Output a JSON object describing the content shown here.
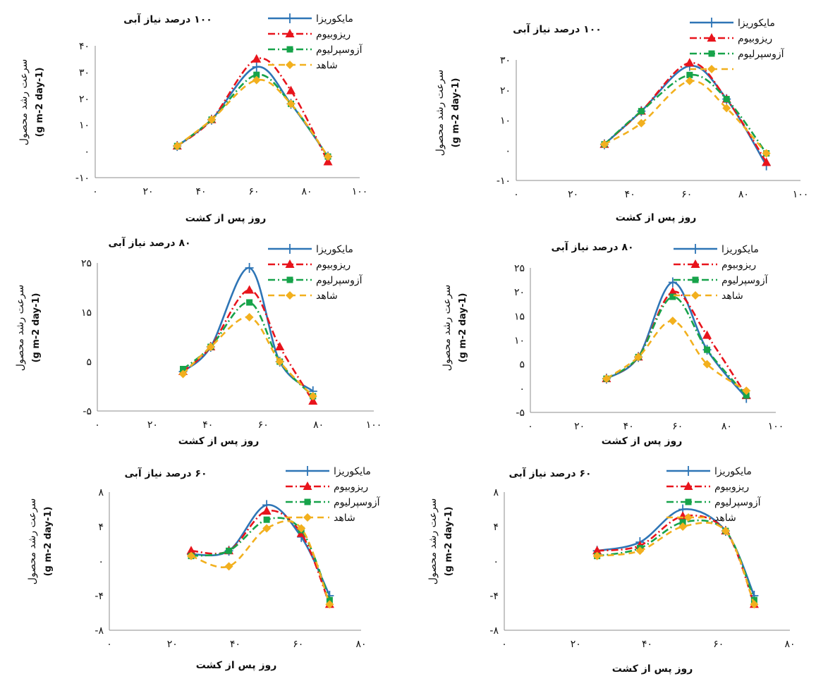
{
  "colors": {
    "mycorrhiza": "#2e75b6",
    "rhizobium": "#e8141c",
    "azospirillum": "#17a34a",
    "control": "#f2b01e"
  },
  "chart_data": [
    {
      "type": "line",
      "title": "۱۰۰ درصد نیاز آبی",
      "xlabel": "روز پس از کشت",
      "ylabel": "سرعت رشد محصول",
      "ylabel_unit": "(g m-2 day-1)",
      "xlim": [
        0,
        100
      ],
      "ylim": [
        -10,
        40
      ],
      "xticks": [
        0,
        20,
        40,
        60,
        80,
        100
      ],
      "xtick_labels": [
        "۰",
        "۲۰",
        "۴۰",
        "۶۰",
        "۸۰",
        "۱۰۰"
      ],
      "yticks": [
        -10,
        0,
        10,
        20,
        30,
        40
      ],
      "ytick_labels": [
        "-۱۰",
        "۰",
        "۱۰",
        "۲۰",
        "۳۰",
        "۴۰"
      ],
      "grid": false,
      "legend_position": "top-right",
      "series": [
        {
          "name": "مایکوریزا",
          "color_key": "mycorrhiza",
          "marker": "plus",
          "dash": "solid",
          "x": [
            31,
            44,
            61,
            74,
            88
          ],
          "y": [
            2,
            12,
            32,
            18,
            -2
          ]
        },
        {
          "name": "ریزوبیوم",
          "color_key": "rhizobium",
          "marker": "triangle",
          "dash": "dashdot",
          "x": [
            31,
            44,
            61,
            74,
            88
          ],
          "y": [
            2,
            12,
            35,
            23,
            -4
          ]
        },
        {
          "name": "آزوسپرلیوم",
          "color_key": "azospirillum",
          "marker": "square",
          "dash": "dashdot",
          "x": [
            31,
            44,
            61,
            74,
            88
          ],
          "y": [
            2,
            12,
            29,
            18,
            -2
          ]
        },
        {
          "name": "شاهد",
          "color_key": "control",
          "marker": "diamond",
          "dash": "dash",
          "x": [
            31,
            44,
            61,
            74,
            88
          ],
          "y": [
            2,
            12,
            27,
            18,
            -2
          ]
        }
      ]
    },
    {
      "type": "line",
      "title": "۱۰۰ درصد نیاز آبی",
      "xlabel": "روز پس از کشت",
      "ylabel": "سرعت رشد محصول",
      "ylabel_unit": "(g m-2 day-1)",
      "xlim": [
        0,
        100
      ],
      "ylim": [
        -10,
        30
      ],
      "xticks": [
        0,
        20,
        40,
        60,
        80,
        100
      ],
      "xtick_labels": [
        "۰",
        "۲۰",
        "۴۰",
        "۶۰",
        "۸۰",
        "۱۰۰"
      ],
      "yticks": [
        -10,
        0,
        10,
        20,
        30
      ],
      "ytick_labels": [
        "-۱۰",
        "۰",
        "۱۰",
        "۲۰",
        "۳۰"
      ],
      "grid": false,
      "legend_position": "top-right",
      "series": [
        {
          "name": "مایکوریزا",
          "color_key": "mycorrhiza",
          "marker": "plus",
          "dash": "solid",
          "x": [
            31,
            44,
            61,
            74,
            88
          ],
          "y": [
            2,
            13,
            28,
            17,
            -5
          ]
        },
        {
          "name": "ریزوبیوم",
          "color_key": "rhizobium",
          "marker": "triangle",
          "dash": "dashdot",
          "x": [
            31,
            44,
            61,
            74,
            88
          ],
          "y": [
            2,
            13,
            29,
            17,
            -4
          ]
        },
        {
          "name": "آزوسپرلیوم",
          "color_key": "azospirillum",
          "marker": "square",
          "dash": "dashdot",
          "x": [
            31,
            44,
            61,
            74,
            88
          ],
          "y": [
            2,
            13,
            25,
            17,
            -1
          ]
        },
        {
          "name": "",
          "color_key": "control",
          "marker": "diamond",
          "dash": "dash",
          "x": [
            31,
            44,
            61,
            74,
            88
          ],
          "y": [
            2,
            9,
            23,
            14,
            -1
          ]
        }
      ]
    },
    {
      "type": "line",
      "title": "۸۰ درصد نیاز آبی",
      "xlabel": "روز پس از کشت",
      "ylabel": "سرعت رشد محصول",
      "ylabel_unit": "(g m-2 day-1)",
      "xlim": [
        0,
        100
      ],
      "ylim": [
        -5,
        25
      ],
      "xticks": [
        0,
        20,
        40,
        60,
        80,
        100
      ],
      "xtick_labels": [
        "۰",
        "۲۰",
        "۴۰",
        "۶۰",
        "۸۰",
        "۱۰۰"
      ],
      "yticks": [
        -5,
        5,
        15,
        25
      ],
      "ytick_labels": [
        "-۵",
        "۵",
        "۱۵",
        "۲۵"
      ],
      "grid": false,
      "legend_position": "top-right",
      "series": [
        {
          "name": "مایکوریزا",
          "color_key": "mycorrhiza",
          "marker": "plus",
          "dash": "solid",
          "x": [
            31,
            41,
            55,
            66,
            78
          ],
          "y": [
            3,
            8,
            24,
            5,
            -1
          ]
        },
        {
          "name": "ریزوبیوم",
          "color_key": "rhizobium",
          "marker": "triangle",
          "dash": "dashdot",
          "x": [
            31,
            41,
            55,
            66,
            78
          ],
          "y": [
            3,
            8,
            19.5,
            8,
            -3
          ]
        },
        {
          "name": "آزوسپرلیوم",
          "color_key": "azospirillum",
          "marker": "square",
          "dash": "dashdot",
          "x": [
            31,
            41,
            55,
            66,
            78
          ],
          "y": [
            3.5,
            8,
            17,
            5,
            -2
          ]
        },
        {
          "name": "شاهد",
          "color_key": "control",
          "marker": "diamond",
          "dash": "dash",
          "x": [
            31,
            41,
            55,
            66,
            78
          ],
          "y": [
            2.5,
            8,
            14,
            5,
            -2
          ]
        }
      ]
    },
    {
      "type": "line",
      "title": "۸۰ درصد نیاز آبی",
      "xlabel": "روز پس از کشت",
      "ylabel": "سرعت رشد محصول",
      "ylabel_unit": "(g m-2 day-1)",
      "xlim": [
        0,
        100
      ],
      "ylim": [
        -5,
        25
      ],
      "xticks": [
        0,
        20,
        40,
        60,
        80,
        100
      ],
      "xtick_labels": [
        "۰",
        "۲۰",
        "۴۰",
        "۶۰",
        "۸۰",
        "۱۰۰"
      ],
      "yticks": [
        -5,
        0,
        5,
        10,
        15,
        20,
        25
      ],
      "ytick_labels": [
        "-۵",
        "۰",
        "۵",
        "۱۰",
        "۱۵",
        "۲۰",
        "۲۵"
      ],
      "grid": false,
      "legend_position": "top-right",
      "series": [
        {
          "name": "مایکوریزا",
          "color_key": "mycorrhiza",
          "marker": "plus",
          "dash": "solid",
          "x": [
            31,
            44,
            58,
            72,
            88
          ],
          "y": [
            2,
            6.5,
            22,
            8,
            -2
          ]
        },
        {
          "name": "ریزوبیوم",
          "color_key": "rhizobium",
          "marker": "triangle",
          "dash": "dashdot",
          "x": [
            31,
            44,
            58,
            72,
            88
          ],
          "y": [
            2,
            6.5,
            20,
            11,
            -1.5
          ]
        },
        {
          "name": "آزوسپرلیوم",
          "color_key": "azospirillum",
          "marker": "square",
          "dash": "dashdot",
          "x": [
            31,
            44,
            58,
            72,
            88
          ],
          "y": [
            2,
            6.5,
            19,
            8,
            -1.5
          ]
        },
        {
          "name": "شاهد",
          "color_key": "control",
          "marker": "diamond",
          "dash": "dash",
          "x": [
            31,
            44,
            58,
            72,
            88
          ],
          "y": [
            2,
            6.5,
            14,
            5,
            -0.5
          ]
        }
      ]
    },
    {
      "type": "line",
      "title": "۶۰ درصد نیاز آبی",
      "xlabel": "روز پس از کشت",
      "ylabel": "سرعت رشد محصول",
      "ylabel_unit": "(g m-2 day-1)",
      "xlim": [
        0,
        80
      ],
      "ylim": [
        -8,
        8
      ],
      "xticks": [
        0,
        20,
        40,
        60,
        80
      ],
      "xtick_labels": [
        "۰",
        "۲۰",
        "۴۰",
        "۶۰",
        "۸۰"
      ],
      "yticks": [
        -8,
        -4,
        0,
        4,
        8
      ],
      "ytick_labels": [
        "-۸",
        "-۴",
        "۰",
        "۴",
        "۸"
      ],
      "grid": false,
      "legend_position": "top-right",
      "series": [
        {
          "name": "مایکوریزا",
          "color_key": "mycorrhiza",
          "marker": "plus",
          "dash": "solid",
          "x": [
            26,
            38,
            50,
            61,
            70
          ],
          "y": [
            0.8,
            1.2,
            6.5,
            2.8,
            -4
          ]
        },
        {
          "name": "ریزوبیوم",
          "color_key": "rhizobium",
          "marker": "triangle",
          "dash": "dashdot",
          "x": [
            26,
            38,
            50,
            61,
            70
          ],
          "y": [
            1.2,
            1.2,
            5.8,
            3.2,
            -5
          ]
        },
        {
          "name": "آزوسپرلیوم",
          "color_key": "azospirillum",
          "marker": "square",
          "dash": "dashdot",
          "x": [
            26,
            38,
            50,
            61,
            70
          ],
          "y": [
            0.6,
            1.2,
            4.8,
            3.6,
            -4.5
          ]
        },
        {
          "name": "شاهد",
          "color_key": "control",
          "marker": "diamond",
          "dash": "dash",
          "x": [
            26,
            38,
            50,
            61,
            70
          ],
          "y": [
            0.6,
            -0.6,
            3.8,
            3.8,
            -5
          ]
        }
      ]
    },
    {
      "type": "line",
      "title": "۶۰ درصد نیاز آبی",
      "xlabel": "روز پس از کشت",
      "ylabel": "سرعت رشد محصول",
      "ylabel_unit": "(g m-2 day-1)",
      "xlim": [
        0,
        80
      ],
      "ylim": [
        -8,
        8
      ],
      "xticks": [
        0,
        20,
        40,
        60,
        80
      ],
      "xtick_labels": [
        "۰",
        "۲۰",
        "۴۰",
        "۶۰",
        "۸۰"
      ],
      "yticks": [
        -8,
        -4,
        0,
        4,
        8
      ],
      "ytick_labels": [
        "-۸",
        "-۴",
        "۰",
        "۴",
        "۸"
      ],
      "grid": false,
      "legend_position": "top-right",
      "series": [
        {
          "name": "مایکوریزا",
          "color_key": "mycorrhiza",
          "marker": "plus",
          "dash": "solid",
          "x": [
            26,
            38,
            50,
            62,
            70
          ],
          "y": [
            1.2,
            2.2,
            6,
            3.5,
            -4
          ]
        },
        {
          "name": "ریزوبیوم",
          "color_key": "rhizobium",
          "marker": "triangle",
          "dash": "dashdot",
          "x": [
            26,
            38,
            50,
            62,
            70
          ],
          "y": [
            1.2,
            1.8,
            5.2,
            3.5,
            -5
          ]
        },
        {
          "name": "آزوسپرلیوم",
          "color_key": "azospirillum",
          "marker": "square",
          "dash": "dashdot",
          "x": [
            26,
            38,
            50,
            62,
            70
          ],
          "y": [
            0.6,
            1.5,
            4.5,
            3.5,
            -4.5
          ]
        },
        {
          "name": "شاهد",
          "color_key": "control",
          "marker": "diamond",
          "dash": "dash",
          "x": [
            26,
            38,
            50,
            62,
            70
          ],
          "y": [
            0.6,
            1.2,
            4,
            3.5,
            -5
          ]
        }
      ]
    }
  ]
}
